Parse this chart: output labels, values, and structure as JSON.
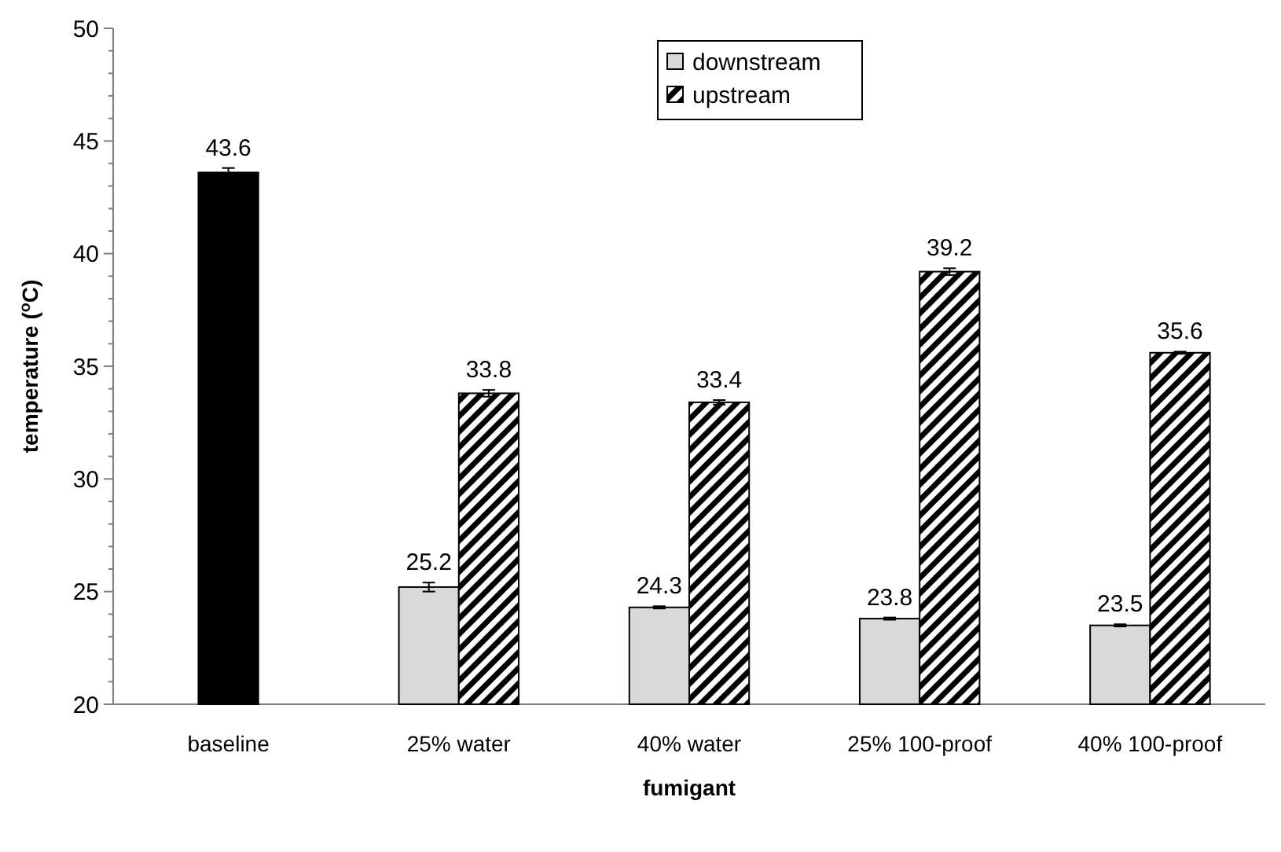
{
  "chart_data": {
    "type": "bar",
    "xlabel": "fumigant",
    "ylabel": "temperature ($^{o}$C)",
    "categories": [
      "baseline",
      "25% water",
      "40% water",
      "25% 100-proof",
      "40% 100-proof"
    ],
    "series": [
      {
        "color": "#000000",
        "values": [
          43.6,
          null,
          null,
          null,
          null
        ],
        "errors": [
          0.2,
          null,
          null,
          null,
          null
        ]
      },
      {
        "name": "downstream",
        "color": "#d9d9d9",
        "values": [
          null,
          25.2,
          24.3,
          23.8,
          23.5
        ],
        "errors": [
          null,
          0.2,
          0.05,
          0.05,
          0.05
        ]
      },
      {
        "name": "upstream",
        "color": "#000000",
        "values": [
          null,
          33.8,
          33.4,
          39.2,
          35.6
        ],
        "errors": [
          null,
          0.15,
          0.1,
          0.15,
          0.05
        ]
      }
    ],
    "ylim": [
      20,
      50
    ],
    "yticks": [
      20,
      {
        "value": 21,
        "label": null
      },
      {
        "value": 22,
        "label": null
      },
      {
        "value": 23,
        "label": null
      },
      {
        "value": 24,
        "label": null
      },
      25,
      {
        "value": 26,
        "label": null
      },
      {
        "value": 27,
        "label": null
      },
      {
        "value": 28,
        "label": null
      },
      {
        "value": 29,
        "label": null
      },
      30,
      {
        "value": 31,
        "label": null
      },
      {
        "value": 32,
        "label": null
      },
      {
        "value": 33,
        "label": null
      },
      {
        "value": 34,
        "label": null
      },
      35,
      {
        "value": 36,
        "label": null
      },
      {
        "value": 37,
        "label": null
      },
      {
        "value": 38,
        "label": null
      },
      {
        "value": 39,
        "label": null
      },
      40,
      {
        "value": 41,
        "label": null
      },
      {
        "value": 42,
        "label": null
      },
      {
        "value": 43,
        "label": null
      },
      {
        "value": 44,
        "label": null
      },
      45,
      {
        "value": 46,
        "label": null
      },
      {
        "value": 47,
        "label": null
      },
      {
        "value": 48,
        "label": null
      },
      {
        "value": 49,
        "label": null
      },
      50
    ],
    "data_labels": true,
    "legend": "top",
    "grid": false
  }
}
